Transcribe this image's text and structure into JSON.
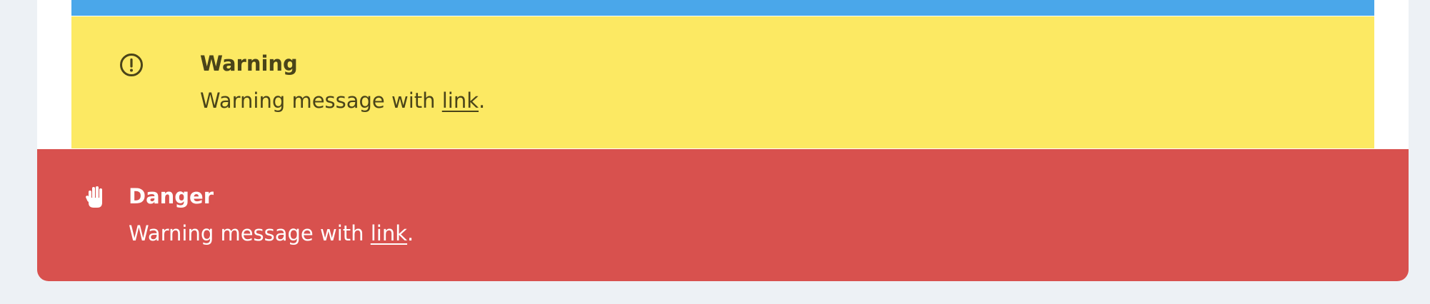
{
  "alerts": {
    "info": {
      "color": "#4aa7ea"
    },
    "warning": {
      "color": "#fce963",
      "text_color": "#4a4419",
      "icon": "exclamation-circle-icon",
      "title": "Warning",
      "message_prefix": "Warning message with ",
      "link_text": "link",
      "message_suffix": "."
    },
    "danger": {
      "color": "#d8514e",
      "text_color": "#ffffff",
      "icon": "hand-stop-icon",
      "title": "Danger",
      "message_prefix": "Warning message with ",
      "link_text": "link",
      "message_suffix": "."
    }
  }
}
